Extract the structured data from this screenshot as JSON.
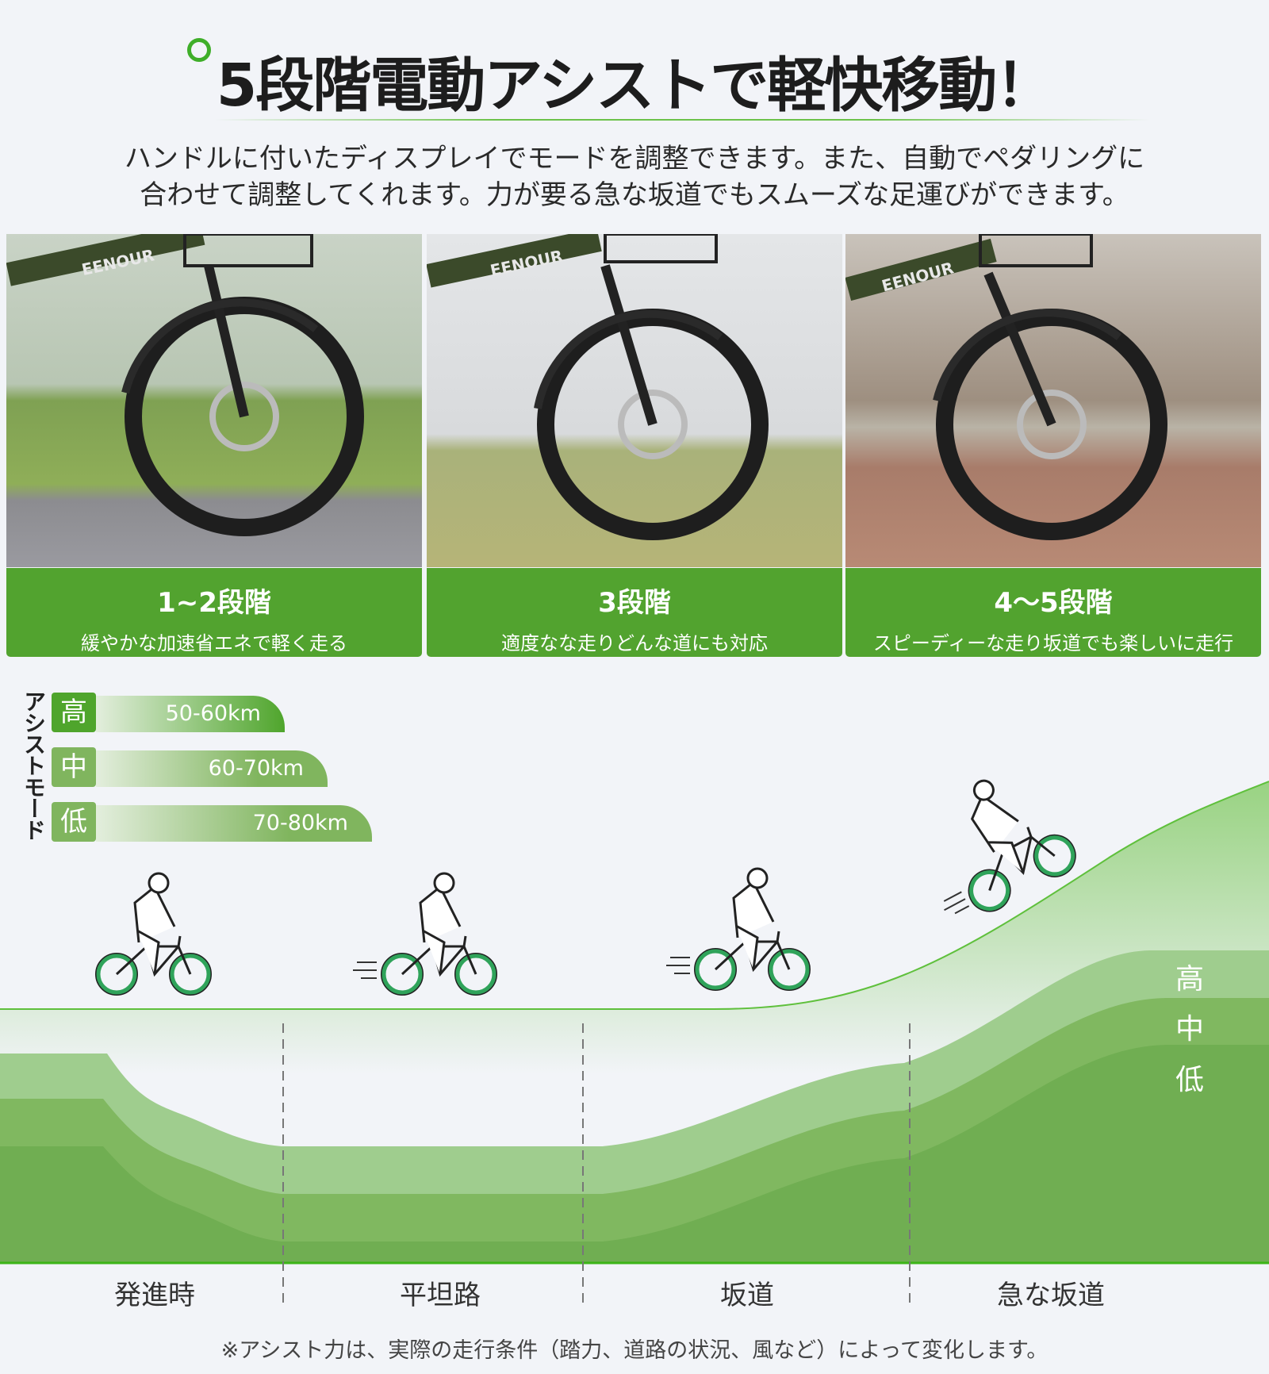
{
  "title": "5段階電動アシストで軽快移動！",
  "subtitle": [
    "ハンドルに付いたディスプレイでモードを調整できます。また、自動でペダリングに",
    "合わせて調整してくれます。力が要る急な坂道でもスムーズな足運びができます。"
  ],
  "panels": [
    {
      "heading": "1~2段階",
      "text": "緩やかな加速省エネで軽く走る",
      "brand": "EENOUR"
    },
    {
      "heading": "3段階",
      "text": "適度なな走りどんな道にも対応",
      "brand": "EENOUR"
    },
    {
      "heading": "4〜5段階",
      "text": "スピーディーな走り坂道でも楽しいに走行",
      "brand": "EENOUR"
    }
  ],
  "assist": {
    "label": "アシストモード",
    "levels": [
      {
        "level": "高",
        "range": "50-60km",
        "color": "#4fa52c"
      },
      {
        "level": "中",
        "range": "60-70km",
        "color": "#80b55e"
      },
      {
        "level": "低",
        "range": "70-80km",
        "color": "#80b55e"
      }
    ]
  },
  "stages": [
    "発進時",
    "平坦路",
    "坂道",
    "急な坂道"
  ],
  "band_labels": [
    "高",
    "中",
    "低"
  ],
  "colors": {
    "accent": "#52a32f",
    "high": "#9fcd8e",
    "mid": "#80b860",
    "low": "#70ae52"
  },
  "footnote": "※アシスト力は、実際の走行条件（踏力、道路の状況、風など）によって変化します。"
}
